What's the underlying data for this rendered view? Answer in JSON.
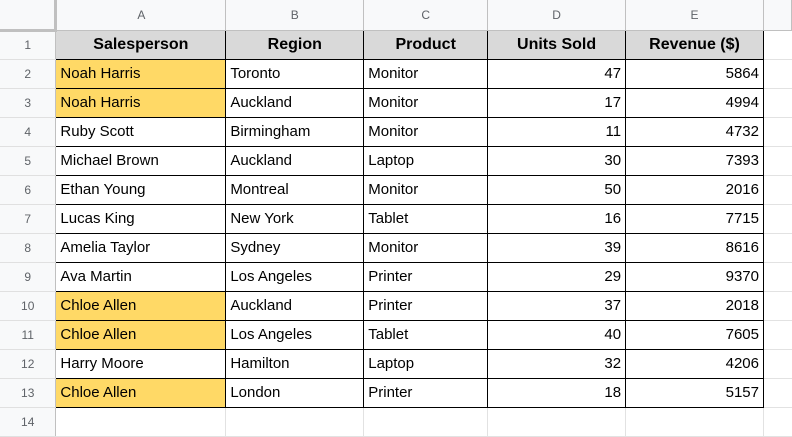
{
  "columns": [
    "A",
    "B",
    "C",
    "D",
    "E"
  ],
  "row_numbers": [
    "1",
    "2",
    "3",
    "4",
    "5",
    "6",
    "7",
    "8",
    "9",
    "10",
    "11",
    "12",
    "13",
    "14"
  ],
  "headers": [
    "Salesperson",
    "Region",
    "Product",
    "Units Sold",
    "Revenue ($)"
  ],
  "rows": [
    {
      "salesperson": "Noah Harris",
      "region": "Toronto",
      "product": "Monitor",
      "units": "47",
      "revenue": "5864",
      "highlight": true
    },
    {
      "salesperson": "Noah Harris",
      "region": "Auckland",
      "product": "Monitor",
      "units": "17",
      "revenue": "4994",
      "highlight": true
    },
    {
      "salesperson": "Ruby Scott",
      "region": "Birmingham",
      "product": "Monitor",
      "units": "11",
      "revenue": "4732",
      "highlight": false
    },
    {
      "salesperson": "Michael Brown",
      "region": "Auckland",
      "product": "Laptop",
      "units": "30",
      "revenue": "7393",
      "highlight": false
    },
    {
      "salesperson": "Ethan Young",
      "region": "Montreal",
      "product": "Monitor",
      "units": "50",
      "revenue": "2016",
      "highlight": false
    },
    {
      "salesperson": "Lucas King",
      "region": "New York",
      "product": "Tablet",
      "units": "16",
      "revenue": "7715",
      "highlight": false
    },
    {
      "salesperson": "Amelia Taylor",
      "region": "Sydney",
      "product": "Monitor",
      "units": "39",
      "revenue": "8616",
      "highlight": false
    },
    {
      "salesperson": "Ava Martin",
      "region": "Los Angeles",
      "product": "Printer",
      "units": "29",
      "revenue": "9370",
      "highlight": false
    },
    {
      "salesperson": "Chloe Allen",
      "region": "Auckland",
      "product": "Printer",
      "units": "37",
      "revenue": "2018",
      "highlight": true
    },
    {
      "salesperson": "Chloe Allen",
      "region": "Los Angeles",
      "product": "Tablet",
      "units": "40",
      "revenue": "7605",
      "highlight": true
    },
    {
      "salesperson": "Harry Moore",
      "region": "Hamilton",
      "product": "Laptop",
      "units": "32",
      "revenue": "4206",
      "highlight": false
    },
    {
      "salesperson": "Chloe Allen",
      "region": "London",
      "product": "Printer",
      "units": "18",
      "revenue": "5157",
      "highlight": true
    }
  ],
  "colors": {
    "highlight": "#ffd966",
    "header_fill": "#d9d9d9"
  }
}
